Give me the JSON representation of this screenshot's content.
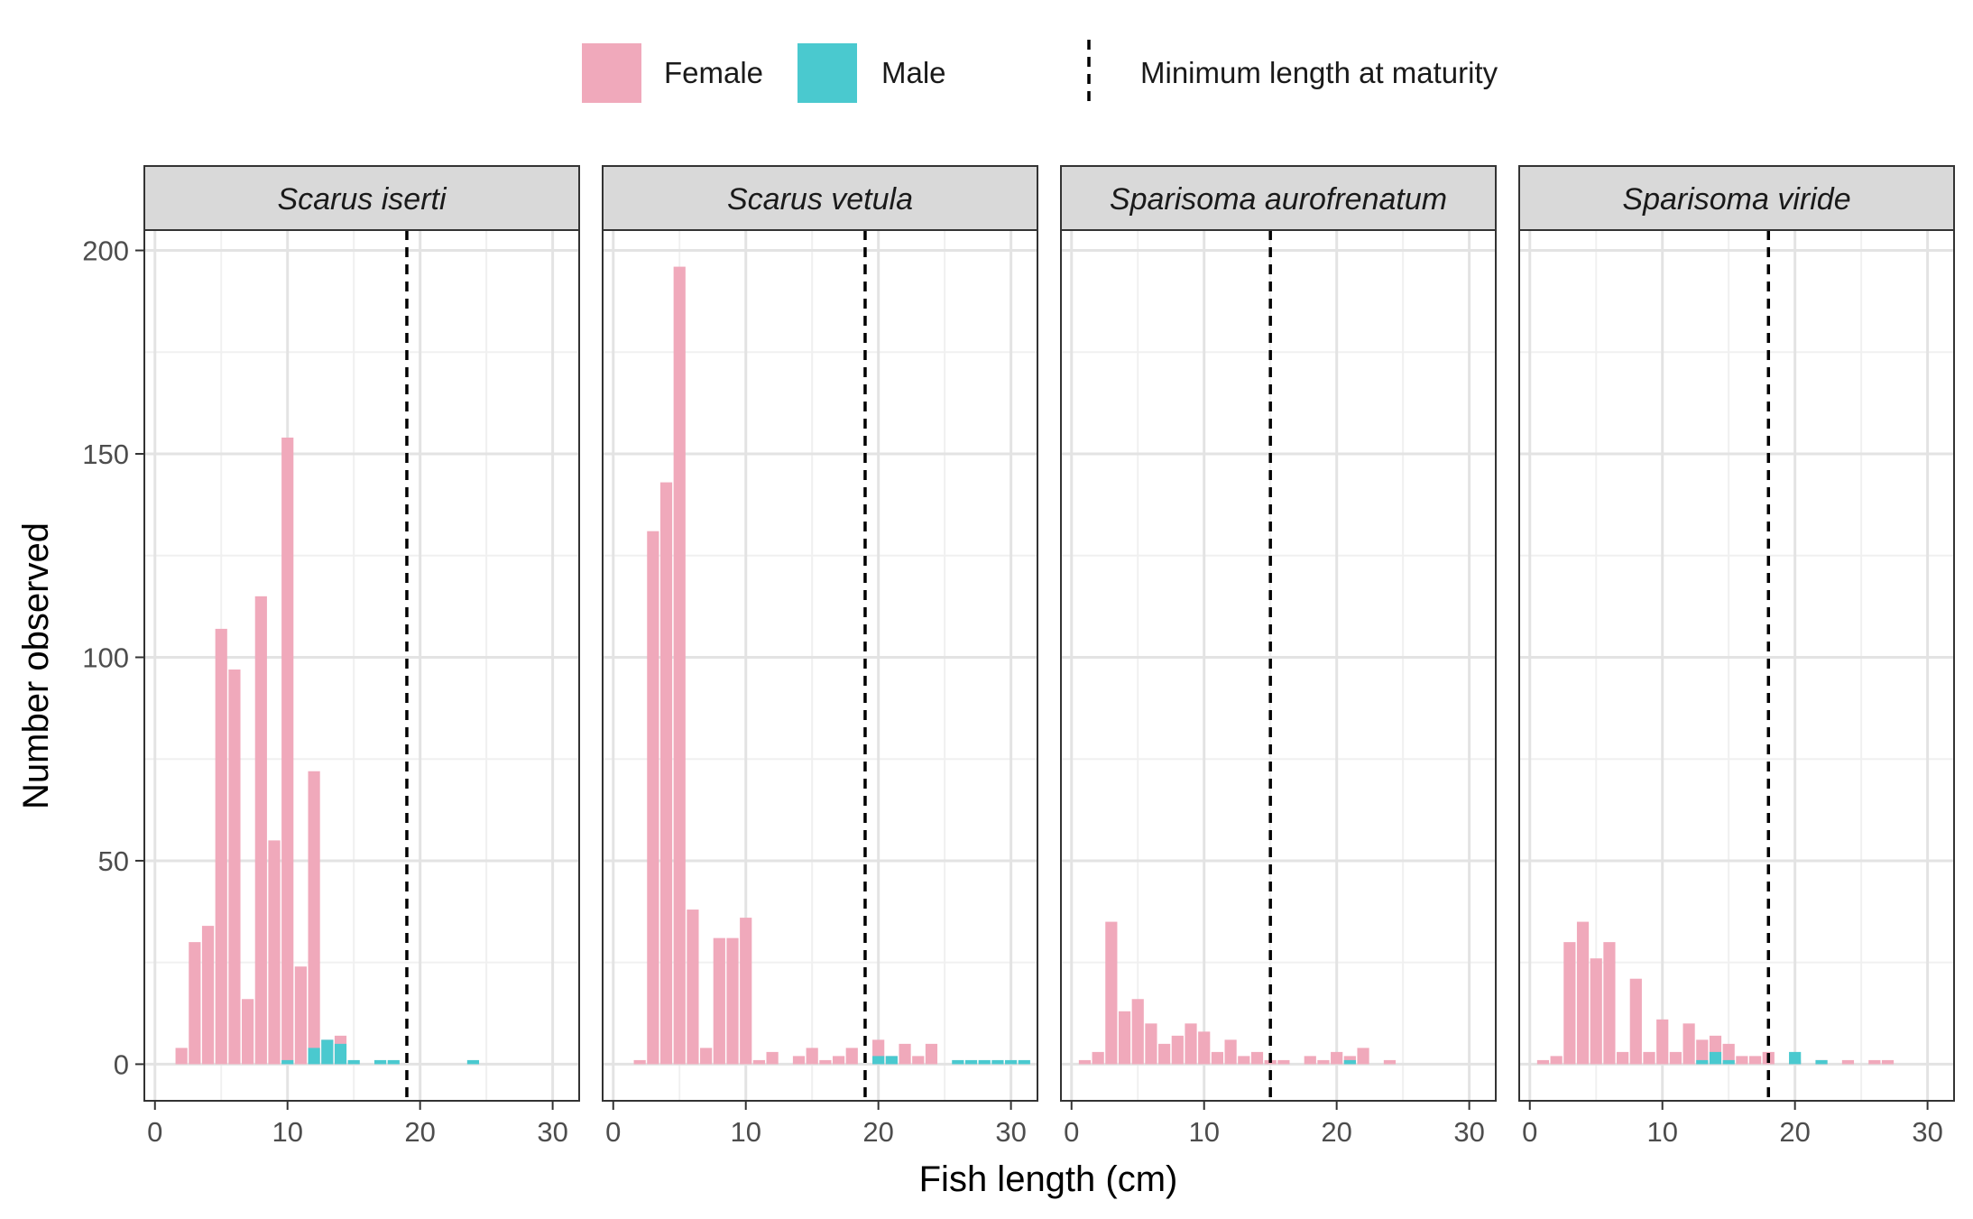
{
  "chart_data": {
    "type": "bar",
    "xlabel": "Fish length (cm)",
    "ylabel": "Number observed",
    "xlim": [
      -0.8,
      32
    ],
    "ylim": [
      -9,
      205
    ],
    "x_ticks": [
      0,
      10,
      20,
      30
    ],
    "y_ticks": [
      0,
      50,
      100,
      150,
      200
    ],
    "grid": true,
    "legend_position": "top",
    "legend": {
      "female_label": "Female",
      "male_label": "Male",
      "line_label": "Minimum length at maturity"
    },
    "colors": {
      "female": "#F0A9BB",
      "male": "#4AC9CF"
    },
    "panels": [
      {
        "title": "Scarus iserti",
        "maturity_length": 19,
        "female": [
          [
            2,
            4
          ],
          [
            3,
            30
          ],
          [
            4,
            34
          ],
          [
            5,
            107
          ],
          [
            6,
            97
          ],
          [
            7,
            16
          ],
          [
            8,
            115
          ],
          [
            9,
            55
          ],
          [
            10,
            154
          ],
          [
            11,
            24
          ],
          [
            12,
            72
          ],
          [
            13,
            6
          ],
          [
            14,
            7
          ]
        ],
        "male": [
          [
            10,
            1
          ],
          [
            12,
            4
          ],
          [
            13,
            6
          ],
          [
            14,
            5
          ],
          [
            15,
            1
          ],
          [
            17,
            1
          ],
          [
            18,
            1
          ],
          [
            24,
            1
          ]
        ]
      },
      {
        "title": "Scarus vetula",
        "maturity_length": 19,
        "female": [
          [
            2,
            1
          ],
          [
            3,
            131
          ],
          [
            4,
            143
          ],
          [
            5,
            196
          ],
          [
            6,
            38
          ],
          [
            7,
            4
          ],
          [
            8,
            31
          ],
          [
            9,
            31
          ],
          [
            10,
            36
          ],
          [
            11,
            1
          ],
          [
            12,
            3
          ],
          [
            14,
            2
          ],
          [
            15,
            4
          ],
          [
            16,
            1
          ],
          [
            17,
            2
          ],
          [
            18,
            4
          ],
          [
            20,
            6
          ],
          [
            21,
            2
          ],
          [
            22,
            5
          ],
          [
            23,
            2
          ],
          [
            24,
            5
          ]
        ],
        "male": [
          [
            20,
            2
          ],
          [
            21,
            2
          ],
          [
            26,
            1
          ],
          [
            27,
            1
          ],
          [
            28,
            1
          ],
          [
            29,
            1
          ],
          [
            30,
            1
          ],
          [
            31,
            1
          ]
        ]
      },
      {
        "title": "Sparisoma aurofrenatum",
        "maturity_length": 15,
        "female": [
          [
            1,
            1
          ],
          [
            2,
            3
          ],
          [
            3,
            35
          ],
          [
            4,
            13
          ],
          [
            5,
            16
          ],
          [
            6,
            10
          ],
          [
            7,
            5
          ],
          [
            8,
            7
          ],
          [
            9,
            10
          ],
          [
            10,
            8
          ],
          [
            11,
            3
          ],
          [
            12,
            6
          ],
          [
            13,
            2
          ],
          [
            14,
            3
          ],
          [
            15,
            1
          ],
          [
            16,
            1
          ],
          [
            18,
            2
          ],
          [
            19,
            1
          ],
          [
            20,
            3
          ],
          [
            21,
            2
          ],
          [
            22,
            4
          ],
          [
            24,
            1
          ]
        ],
        "male": [
          [
            21,
            1
          ]
        ]
      },
      {
        "title": "Sparisoma viride",
        "maturity_length": 18,
        "female": [
          [
            1,
            1
          ],
          [
            2,
            2
          ],
          [
            3,
            30
          ],
          [
            4,
            35
          ],
          [
            5,
            26
          ],
          [
            6,
            30
          ],
          [
            7,
            3
          ],
          [
            8,
            21
          ],
          [
            9,
            3
          ],
          [
            10,
            11
          ],
          [
            11,
            3
          ],
          [
            12,
            10
          ],
          [
            13,
            6
          ],
          [
            14,
            7
          ],
          [
            15,
            5
          ],
          [
            16,
            2
          ],
          [
            17,
            2
          ],
          [
            18,
            3
          ],
          [
            20,
            1
          ],
          [
            22,
            1
          ],
          [
            24,
            1
          ],
          [
            26,
            1
          ],
          [
            27,
            1
          ]
        ],
        "male": [
          [
            13,
            1
          ],
          [
            14,
            3
          ],
          [
            15,
            1
          ],
          [
            20,
            3
          ],
          [
            22,
            1
          ]
        ]
      }
    ]
  }
}
